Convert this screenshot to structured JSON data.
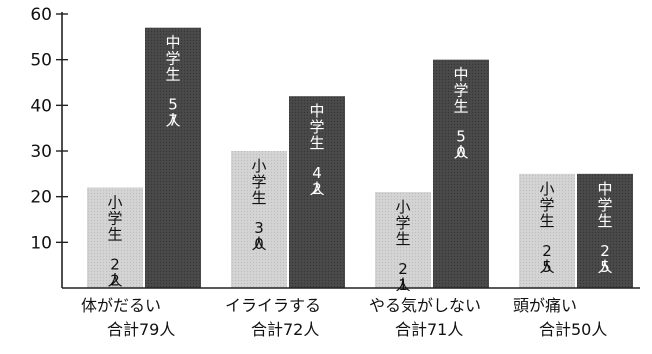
{
  "chart_data": {
    "type": "bar",
    "title": "",
    "xlabel": "",
    "ylabel": "",
    "ylim": [
      0,
      60
    ],
    "yticks": [
      10,
      20,
      30,
      40,
      50,
      60
    ],
    "grid": false,
    "legend": "none",
    "categories": [
      {
        "label": "体がだるい",
        "total": "合計79人"
      },
      {
        "label": "イライラする",
        "total": "合計72人"
      },
      {
        "label": "やる気がしない",
        "total": "合計71人"
      },
      {
        "label": "頭が痛い",
        "total": "合計50人"
      }
    ],
    "series": [
      {
        "group_label": "小学生",
        "values": [
          22,
          30,
          21,
          25
        ],
        "value_labels": [
          "22人",
          "30人",
          "21人",
          "25人"
        ],
        "color": "#d4d4d4"
      },
      {
        "group_label": "中学生",
        "values": [
          57,
          42,
          50,
          25
        ],
        "value_labels": [
          "57人",
          "42人",
          "50人",
          "25人"
        ],
        "color": "#4a4a4a"
      }
    ]
  }
}
